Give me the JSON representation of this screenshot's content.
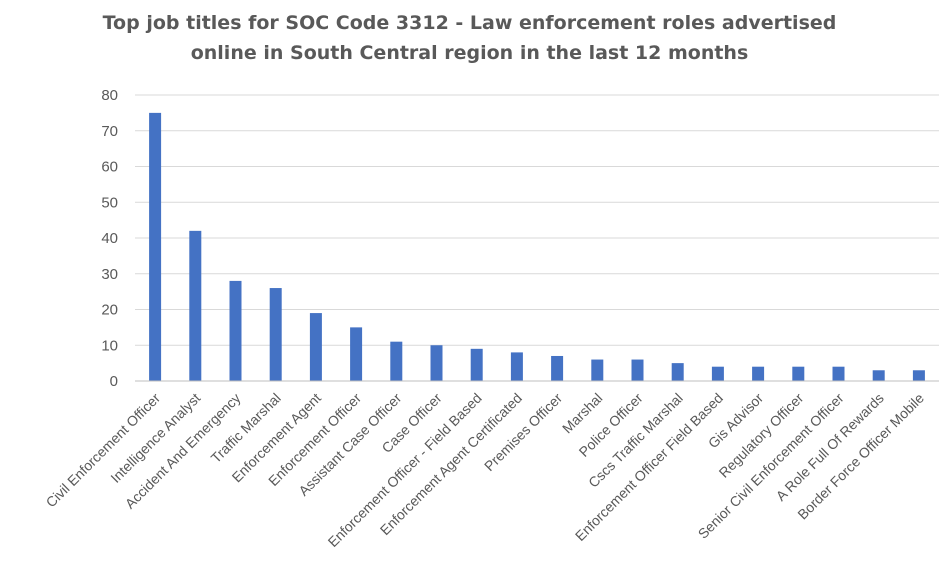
{
  "chart_data": {
    "type": "bar",
    "title_lines": [
      "Top job titles for SOC Code 3312 - Law enforcement roles advertised",
      "online in South Central region in the last 12 months"
    ],
    "categories": [
      "Civil Enforcement Officer",
      "Intelligence Analyst",
      "Accident And Emergency",
      "Traffic Marshal",
      "Enforcement Agent",
      "Enforcement Officer",
      "Assistant Case Officer",
      "Case Officer",
      "Enforcement Officer - Field Based",
      "Enforcement Agent Certificated",
      "Premises Officer",
      "Marshal",
      "Police Officer",
      "Cscs Traffic Marshal",
      "Enforcement Officer Field Based",
      "Gis Advisor",
      "Regulatory Officer",
      "Senior Civil Enforcement Officer",
      "A Role Full Of Rewards",
      "Border Force Officer Mobile"
    ],
    "values": [
      75,
      42,
      28,
      26,
      19,
      15,
      11,
      10,
      9,
      8,
      7,
      6,
      6,
      5,
      4,
      4,
      4,
      4,
      3,
      3
    ],
    "ylim": [
      0,
      80
    ],
    "yticks": [
      0,
      10,
      20,
      30,
      40,
      50,
      60,
      70,
      80
    ],
    "xlabel": "",
    "ylabel": "",
    "grid": true,
    "legend": "none",
    "bar_color": "#4472c4"
  }
}
